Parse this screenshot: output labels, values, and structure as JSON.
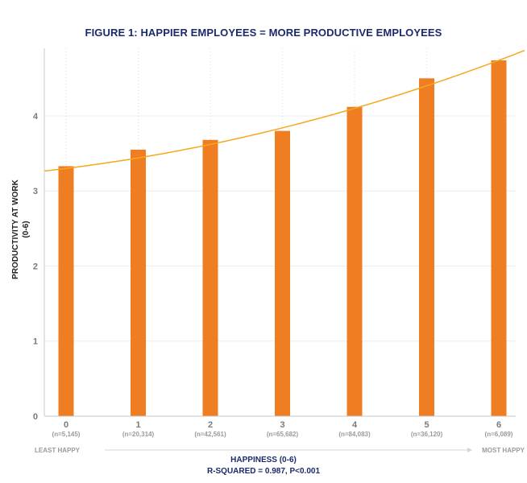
{
  "chart_data": {
    "type": "bar",
    "title": "FIGURE 1: HAPPIER EMPLOYEES = MORE PRODUCTIVE EMPLOYEES",
    "categories": [
      "0",
      "1",
      "2",
      "3",
      "4",
      "5",
      "6"
    ],
    "sample_sizes": [
      "(n=5,145)",
      "(n=20,314)",
      "(n=42,561)",
      "(n=65,682)",
      "(n=84,083)",
      "(n=36,120)",
      "(n=6,089)"
    ],
    "values": [
      3.33,
      3.55,
      3.68,
      3.8,
      4.12,
      4.5,
      4.74
    ],
    "ylabel": "PRODUCTIVITY AT WORK",
    "ylabel_sub": "(0-6)",
    "xlabel": "HAPPINESS (0-6)",
    "stats": "R-SQUARED = 0.987, P<0.001",
    "x_left_label": "LEAST HAPPY",
    "x_right_label": "MOST HAPPY",
    "ylim": [
      0,
      4.9
    ],
    "yticks": [
      0,
      1,
      2,
      3,
      4
    ],
    "trendline": {
      "type": "quadratic",
      "color": "#f5a81c",
      "coefficients": [
        3.3,
        0.12,
        0.02
      ]
    },
    "bar_color": "#ef7d22",
    "grid": true
  }
}
